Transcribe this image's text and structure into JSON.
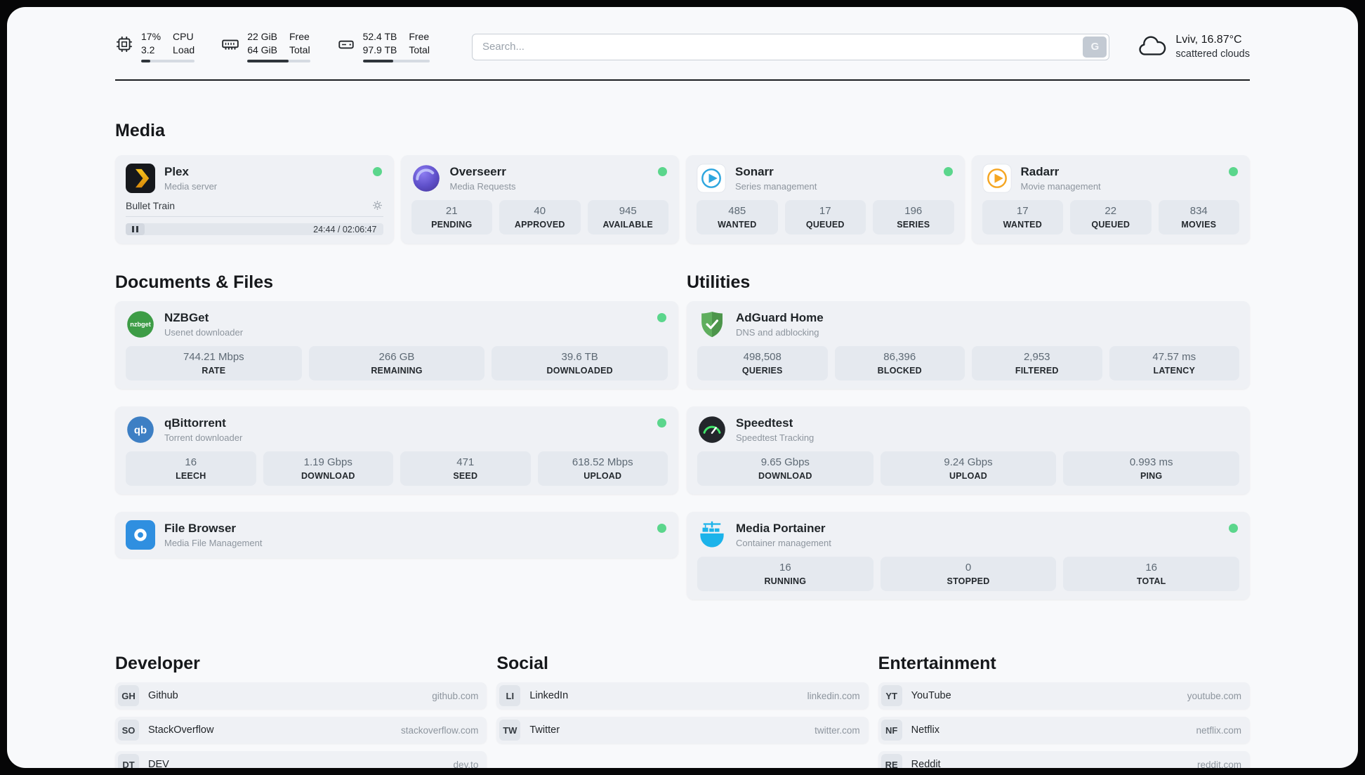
{
  "topbar": {
    "metrics": [
      {
        "value_top": "17%",
        "value_bottom": "3.2",
        "label_top": "CPU",
        "label_bottom": "Load",
        "progress": 17
      },
      {
        "value_top": "22 GiB",
        "value_bottom": "64 GiB",
        "label_top": "Free",
        "label_bottom": "Total",
        "progress": 66
      },
      {
        "value_top": "52.4 TB",
        "value_bottom": "97.9 TB",
        "label_top": "Free",
        "label_bottom": "Total",
        "progress": 46
      }
    ],
    "search": {
      "placeholder": "Search...",
      "provider": "G"
    },
    "weather": {
      "location": "Lviv, 16.87°C",
      "condition": "scattered clouds"
    }
  },
  "media": {
    "title": "Media",
    "plex": {
      "name": "Plex",
      "subtitle": "Media server",
      "now_playing": "Bullet Train",
      "time": "24:44 / 02:06:47"
    },
    "overseerr": {
      "name": "Overseerr",
      "subtitle": "Media Requests",
      "stats": [
        {
          "value": "21",
          "label": "PENDING"
        },
        {
          "value": "40",
          "label": "APPROVED"
        },
        {
          "value": "945",
          "label": "AVAILABLE"
        }
      ]
    },
    "sonarr": {
      "name": "Sonarr",
      "subtitle": "Series management",
      "stats": [
        {
          "value": "485",
          "label": "WANTED"
        },
        {
          "value": "17",
          "label": "QUEUED"
        },
        {
          "value": "196",
          "label": "SERIES"
        }
      ]
    },
    "radarr": {
      "name": "Radarr",
      "subtitle": "Movie management",
      "stats": [
        {
          "value": "17",
          "label": "WANTED"
        },
        {
          "value": "22",
          "label": "QUEUED"
        },
        {
          "value": "834",
          "label": "MOVIES"
        }
      ]
    }
  },
  "documents": {
    "title": "Documents & Files",
    "nzbget": {
      "name": "NZBGet",
      "subtitle": "Usenet downloader",
      "stats": [
        {
          "value": "744.21 Mbps",
          "label": "RATE"
        },
        {
          "value": "266 GB",
          "label": "REMAINING"
        },
        {
          "value": "39.6 TB",
          "label": "DOWNLOADED"
        }
      ]
    },
    "qbittorrent": {
      "name": "qBittorrent",
      "subtitle": "Torrent downloader",
      "stats": [
        {
          "value": "16",
          "label": "LEECH"
        },
        {
          "value": "1.19 Gbps",
          "label": "DOWNLOAD"
        },
        {
          "value": "471",
          "label": "SEED"
        },
        {
          "value": "618.52 Mbps",
          "label": "UPLOAD"
        }
      ]
    },
    "filebrowser": {
      "name": "File Browser",
      "subtitle": "Media File Management"
    }
  },
  "utilities": {
    "title": "Utilities",
    "adguard": {
      "name": "AdGuard Home",
      "subtitle": "DNS and adblocking",
      "stats": [
        {
          "value": "498,508",
          "label": "QUERIES"
        },
        {
          "value": "86,396",
          "label": "BLOCKED"
        },
        {
          "value": "2,953",
          "label": "FILTERED"
        },
        {
          "value": "47.57 ms",
          "label": "LATENCY"
        }
      ]
    },
    "speedtest": {
      "name": "Speedtest",
      "subtitle": "Speedtest Tracking",
      "stats": [
        {
          "value": "9.65 Gbps",
          "label": "DOWNLOAD"
        },
        {
          "value": "9.24 Gbps",
          "label": "UPLOAD"
        },
        {
          "value": "0.993 ms",
          "label": "PING"
        }
      ]
    },
    "portainer": {
      "name": "Media Portainer",
      "subtitle": "Container management",
      "stats": [
        {
          "value": "16",
          "label": "RUNNING"
        },
        {
          "value": "0",
          "label": "STOPPED"
        },
        {
          "value": "16",
          "label": "TOTAL"
        }
      ]
    }
  },
  "bookmarks": [
    {
      "title": "Developer",
      "items": [
        {
          "abbr": "GH",
          "name": "Github",
          "url": "github.com"
        },
        {
          "abbr": "SO",
          "name": "StackOverflow",
          "url": "stackoverflow.com"
        },
        {
          "abbr": "DT",
          "name": "DEV",
          "url": "dev.to"
        }
      ]
    },
    {
      "title": "Social",
      "items": [
        {
          "abbr": "LI",
          "name": "LinkedIn",
          "url": "linkedin.com"
        },
        {
          "abbr": "TW",
          "name": "Twitter",
          "url": "twitter.com"
        }
      ]
    },
    {
      "title": "Entertainment",
      "items": [
        {
          "abbr": "YT",
          "name": "YouTube",
          "url": "youtube.com"
        },
        {
          "abbr": "NF",
          "name": "Netflix",
          "url": "netflix.com"
        },
        {
          "abbr": "RE",
          "name": "Reddit",
          "url": "reddit.com"
        }
      ]
    }
  ],
  "colors": {
    "status_online": "#5bd68c",
    "accent_plex": "#e5a00d",
    "accent_sonarr": "#2ea6de",
    "accent_radarr": "#f5a623"
  }
}
